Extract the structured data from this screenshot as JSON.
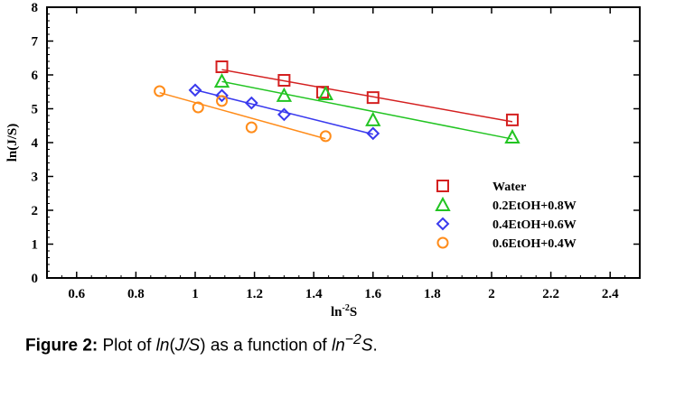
{
  "chart_data": {
    "type": "scatter",
    "title": "",
    "xlabel": "ln",
    "xlabel_sup": "-2",
    "xlabel_tail": "S",
    "ylabel": "ln(J/S)",
    "xlim": [
      0.5,
      2.5
    ],
    "ylim": [
      0,
      8
    ],
    "xticks": [
      0.6,
      0.8,
      1,
      1.2,
      1.4,
      1.6,
      1.8,
      2,
      2.2,
      2.4
    ],
    "xtick_labels": [
      "0.6",
      "0.8",
      "1",
      "1.2",
      "1.4",
      "1.6",
      "1.8",
      "2",
      "2.2",
      "2.4"
    ],
    "yticks": [
      0,
      1,
      2,
      3,
      4,
      5,
      6,
      7,
      8
    ],
    "ytick_labels": [
      "0",
      "1",
      "2",
      "3",
      "4",
      "5",
      "6",
      "7",
      "8"
    ],
    "grid": false,
    "legend_position": "bottom-right",
    "fit_lines": true,
    "series": [
      {
        "name": "Water",
        "marker": "square",
        "color": "#d42020",
        "x": [
          1.09,
          1.3,
          1.43,
          1.6,
          2.07
        ],
        "y": [
          6.24,
          5.84,
          5.49,
          5.33,
          4.67
        ]
      },
      {
        "name": "0.2EtOH+0.8W",
        "marker": "triangle",
        "color": "#22c422",
        "x": [
          1.09,
          1.3,
          1.44,
          1.6,
          2.07
        ],
        "y": [
          5.81,
          5.39,
          5.44,
          4.67,
          4.16
        ]
      },
      {
        "name": "0.4EtOH+0.6W",
        "marker": "diamond",
        "color": "#3a3aee",
        "x": [
          1.0,
          1.09,
          1.19,
          1.3,
          1.6
        ],
        "y": [
          5.55,
          5.39,
          5.17,
          4.83,
          4.27
        ]
      },
      {
        "name": "0.6EtOH+0.4W",
        "marker": "circle",
        "color": "#ff8c1a",
        "x": [
          0.88,
          1.01,
          1.09,
          1.19,
          1.44
        ],
        "y": [
          5.52,
          5.04,
          5.23,
          4.45,
          4.19
        ]
      }
    ]
  },
  "caption": {
    "label": "Figure 2:",
    "pre": " Plot of ",
    "i1": "ln",
    "mid1": "(",
    "i2": "J/S",
    "mid2": ") as a function of ",
    "i3": "ln",
    "sup": "−2",
    "i4": "S",
    "end": "."
  }
}
